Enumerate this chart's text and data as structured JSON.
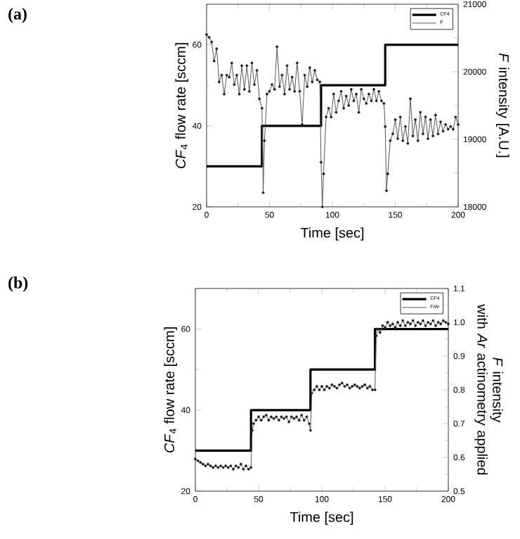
{
  "chart_data": [
    {
      "type": "line",
      "annotations": [
        "(a)"
      ],
      "xlabel": "Time [sec]",
      "ylabel": "*CF*$_{4}$ flow rate [sccm]",
      "y2label": "*F* intensity [A.U.]",
      "xlim": [
        0,
        200
      ],
      "xticks": [
        0,
        50,
        100,
        150,
        200
      ],
      "ylim": [
        20,
        70
      ],
      "yticks": [
        20,
        40,
        60
      ],
      "y2lim": [
        18000,
        21000
      ],
      "y2ticks": [
        18000,
        19000,
        20000,
        21000
      ],
      "legend": "top right",
      "series": [
        {
          "name": "CF4",
          "type": "step",
          "color": "#000000",
          "marker": "none",
          "x": [
            0,
            44,
            91,
            142,
            200
          ],
          "values": [
            30,
            40,
            50,
            60,
            60
          ]
        },
        {
          "name": "F",
          "axis": "y2",
          "color": "#555555",
          "marker": "circle",
          "x": [
            0,
            2,
            4,
            6,
            8,
            10,
            12,
            14,
            16,
            18,
            20,
            22,
            24,
            26,
            28,
            30,
            32,
            34,
            36,
            38,
            40,
            42,
            44,
            45,
            46,
            48,
            50,
            52,
            54,
            56,
            58,
            60,
            62,
            64,
            66,
            68,
            70,
            72,
            74,
            76,
            78,
            80,
            82,
            84,
            86,
            88,
            90,
            91,
            92,
            93,
            95,
            97,
            99,
            101,
            103,
            105,
            107,
            109,
            111,
            113,
            115,
            117,
            119,
            121,
            123,
            125,
            127,
            129,
            131,
            133,
            135,
            137,
            139,
            141,
            142,
            143,
            144,
            146,
            148,
            150,
            152,
            154,
            156,
            158,
            160,
            162,
            164,
            166,
            168,
            170,
            172,
            174,
            176,
            178,
            180,
            182,
            184,
            186,
            188,
            190,
            192,
            194,
            196,
            198,
            200
          ],
          "values": [
            20550,
            20510,
            20440,
            20160,
            20340,
            19850,
            19950,
            19670,
            19950,
            19920,
            20130,
            19810,
            19950,
            19670,
            20090,
            19740,
            20090,
            19710,
            20130,
            19810,
            20020,
            19600,
            19460,
            18210,
            18980,
            19670,
            19710,
            19810,
            19740,
            20370,
            19780,
            19950,
            19670,
            20090,
            19740,
            19920,
            19710,
            20130,
            19710,
            19220,
            19950,
            19780,
            20060,
            19850,
            20020,
            19880,
            19850,
            18660,
            18000,
            18490,
            19330,
            19460,
            19330,
            19670,
            19400,
            19570,
            19710,
            19460,
            19640,
            19500,
            19740,
            19570,
            19670,
            19400,
            19740,
            19600,
            19530,
            19670,
            19570,
            19740,
            19570,
            19710,
            19570,
            19530,
            19190,
            18240,
            18490,
            18980,
            19080,
            19290,
            19010,
            19330,
            18980,
            19190,
            18940,
            19600,
            19050,
            19290,
            18980,
            19400,
            19080,
            19330,
            19010,
            19290,
            19050,
            19360,
            19080,
            19260,
            19120,
            19220,
            19150,
            19190,
            19150,
            19330,
            19220
          ]
        }
      ]
    },
    {
      "type": "line",
      "annotations": [
        "(b)"
      ],
      "xlabel": "Time [sec]",
      "ylabel": "*CF*$_{4}$ flow rate [sccm]",
      "y2label": "*F* intensity\nwith *Ar* actinometry applied",
      "xlim": [
        0,
        200
      ],
      "xticks": [
        0,
        50,
        100,
        150,
        200
      ],
      "ylim": [
        20,
        70
      ],
      "yticks": [
        20,
        40,
        60
      ],
      "y2lim": [
        0.5,
        1.1
      ],
      "y2ticks": [
        0.5,
        0.6,
        0.7,
        0.8,
        0.9,
        {
          "value": 1.0,
          "label": "1.0"
        },
        1.1
      ],
      "legend": "top right",
      "series": [
        {
          "name": "CF4",
          "type": "step",
          "color": "#000000",
          "marker": "none",
          "x": [
            0,
            44,
            91,
            142,
            200
          ],
          "values": [
            30,
            40,
            50,
            60,
            60
          ]
        },
        {
          "name": "F/Ar",
          "axis": "y2",
          "color": "#555555",
          "marker": "circle",
          "x": [
            0,
            2,
            4,
            6,
            8,
            10,
            12,
            14,
            16,
            18,
            20,
            22,
            24,
            26,
            28,
            30,
            32,
            34,
            36,
            38,
            40,
            42,
            44,
            45,
            46,
            48,
            50,
            52,
            54,
            56,
            58,
            60,
            62,
            64,
            66,
            68,
            70,
            72,
            74,
            76,
            78,
            80,
            82,
            84,
            86,
            88,
            90,
            91,
            92,
            94,
            96,
            98,
            100,
            102,
            104,
            106,
            108,
            110,
            112,
            114,
            116,
            118,
            120,
            122,
            124,
            126,
            128,
            130,
            132,
            134,
            136,
            138,
            140,
            142,
            143,
            144,
            146,
            148,
            150,
            152,
            154,
            156,
            158,
            160,
            162,
            164,
            166,
            168,
            170,
            172,
            174,
            176,
            178,
            180,
            182,
            184,
            186,
            188,
            190,
            192,
            194,
            196,
            198,
            200
          ],
          "values": [
            0.595,
            0.59,
            0.585,
            0.58,
            0.575,
            0.58,
            0.575,
            0.57,
            0.575,
            0.57,
            0.575,
            0.57,
            0.575,
            0.57,
            0.575,
            0.565,
            0.575,
            0.57,
            0.58,
            0.565,
            0.575,
            0.565,
            0.57,
            0.68,
            0.7,
            0.71,
            0.72,
            0.71,
            0.72,
            0.725,
            0.71,
            0.72,
            0.715,
            0.72,
            0.71,
            0.72,
            0.715,
            0.72,
            0.705,
            0.72,
            0.715,
            0.72,
            0.71,
            0.725,
            0.71,
            0.72,
            0.7,
            0.68,
            0.79,
            0.8,
            0.81,
            0.8,
            0.81,
            0.8,
            0.81,
            0.805,
            0.815,
            0.81,
            0.805,
            0.815,
            0.82,
            0.81,
            0.815,
            0.805,
            0.81,
            0.815,
            0.81,
            0.805,
            0.81,
            0.815,
            0.805,
            0.81,
            0.8,
            0.8,
            0.96,
            0.98,
            0.97,
            0.99,
            0.985,
            1.0,
            0.99,
            0.995,
            0.985,
            1.0,
            0.99,
            1.005,
            0.99,
            1.0,
            0.995,
            1.005,
            0.99,
            1.0,
            0.995,
            1.005,
            0.99,
            1.0,
            0.995,
            1.005,
            0.99,
            1.0,
            0.995,
            1.005,
            1.0,
            0.995
          ]
        }
      ]
    }
  ]
}
